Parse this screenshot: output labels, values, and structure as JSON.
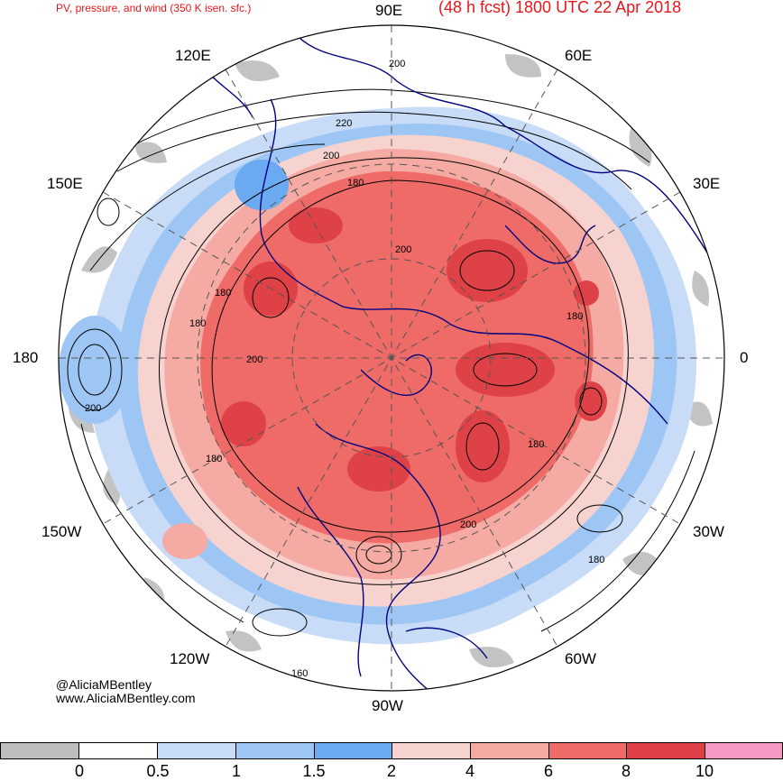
{
  "header": {
    "product": "PV, pressure, and wind (350 K isen. sfc.)",
    "valid": "(48 h fcst) 1800 UTC 22 Apr 2018"
  },
  "map": {
    "longitude_labels": [
      {
        "id": "lon-90e",
        "text": "90E"
      },
      {
        "id": "lon-60e",
        "text": "60E"
      },
      {
        "id": "lon-120e",
        "text": "120E"
      },
      {
        "id": "lon-30e",
        "text": "30E"
      },
      {
        "id": "lon-150e",
        "text": "150E"
      },
      {
        "id": "lon-180",
        "text": "180"
      },
      {
        "id": "lon-0",
        "text": "0"
      },
      {
        "id": "lon-150w",
        "text": "150W"
      },
      {
        "id": "lon-30w",
        "text": "30W"
      },
      {
        "id": "lon-120w",
        "text": "120W"
      },
      {
        "id": "lon-60w",
        "text": "60W"
      },
      {
        "id": "lon-90w",
        "text": "90W"
      }
    ],
    "contour_labels": [
      "200",
      "220",
      "200",
      "180",
      "200",
      "180",
      "180",
      "200",
      "200",
      "180",
      "180",
      "200",
      "180",
      "180",
      "160"
    ],
    "colors": {
      "gray": "#bdbdbd",
      "white": "#ffffff",
      "lightblue": "#c8dcf8",
      "midblue": "#9ec6f4",
      "blue": "#6aaaf0",
      "pinklight": "#f7d3cf",
      "salmon": "#f5aaa4",
      "red": "#ee6b68",
      "darkred": "#de4246",
      "magenta": "#f49ac4",
      "coast": "#000080",
      "contour": "#000000"
    }
  },
  "credits": {
    "handle": "@AliciaMBentley",
    "website": "www.AliciaMBentley.com"
  },
  "colorbar": {
    "colors": [
      "#bdbdbd",
      "#ffffff",
      "#c8dcf8",
      "#9ec6f4",
      "#6aaaf0",
      "#f7d3cf",
      "#f5aaa4",
      "#ee6b68",
      "#de4246",
      "#f49ac4"
    ],
    "labels": [
      "0",
      "0.5",
      "1",
      "1.5",
      "2",
      "4",
      "6",
      "8",
      "10"
    ]
  }
}
